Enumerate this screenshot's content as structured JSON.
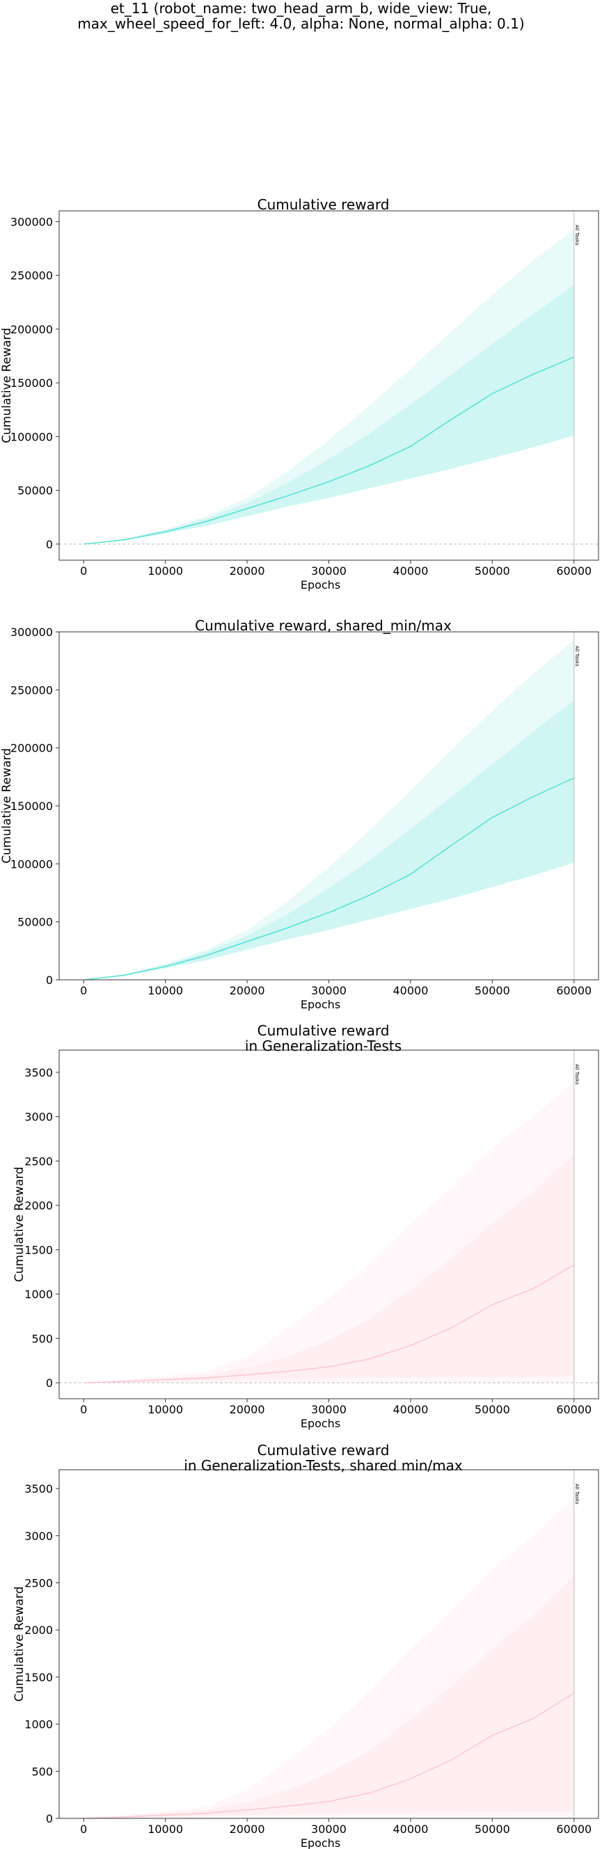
{
  "figure": {
    "suptitle_line1": "et_11 (robot_name: two_head_arm_b, wide_view: True,",
    "suptitle_line2": "max_wheel_speed_for_left: 4.0, alpha: None, normal_alpha: 0.1)"
  },
  "chart_data": [
    {
      "type": "area",
      "title_lines": [
        "Cumulative reward"
      ],
      "xlabel": "Epochs",
      "ylabel": "Cumulative Reward",
      "xlim": [
        -3000,
        63000
      ],
      "ylim": [
        -15000,
        310000
      ],
      "xticks": [
        0,
        10000,
        20000,
        30000,
        40000,
        50000,
        60000
      ],
      "yticks": [
        0,
        50000,
        100000,
        150000,
        200000,
        250000,
        300000
      ],
      "vline": {
        "x": 60000,
        "label": "All Tasks"
      },
      "hline_y": 0,
      "color": "#40e0d0",
      "x": [
        0,
        5000,
        10000,
        15000,
        20000,
        25000,
        30000,
        35000,
        40000,
        45000,
        50000,
        55000,
        60000
      ],
      "series": [
        {
          "role": "mean",
          "values": [
            0,
            4000,
            11500,
            21000,
            33000,
            45000,
            58000,
            73000,
            91000,
            116000,
            140000,
            158000,
            174000
          ]
        },
        {
          "role": "band_inner_upper",
          "values": [
            0,
            4500,
            13000,
            24000,
            38000,
            57000,
            79000,
            103000,
            130000,
            158000,
            186000,
            214000,
            241000
          ]
        },
        {
          "role": "band_inner_lower",
          "values": [
            0,
            3500,
            10000,
            17000,
            26000,
            35000,
            43000,
            52000,
            61000,
            70000,
            80000,
            90000,
            101000
          ]
        },
        {
          "role": "band_outer_upper",
          "values": [
            0,
            5000,
            14000,
            26000,
            43000,
            68000,
            97000,
            129000,
            163000,
            198000,
            232000,
            264000,
            293000
          ]
        },
        {
          "role": "band_outer_lower",
          "values": [
            0,
            3500,
            10000,
            17000,
            26000,
            35000,
            43000,
            52000,
            61000,
            70000,
            80000,
            90000,
            101000
          ]
        }
      ]
    },
    {
      "type": "area",
      "title_lines": [
        "Cumulative reward, shared_min/max"
      ],
      "xlabel": "Epochs",
      "ylabel": "Cumulative Reward",
      "xlim": [
        -3000,
        63000
      ],
      "ylim": [
        0,
        300000
      ],
      "xticks": [
        0,
        10000,
        20000,
        30000,
        40000,
        50000,
        60000
      ],
      "yticks": [
        0,
        50000,
        100000,
        150000,
        200000,
        250000,
        300000
      ],
      "vline": {
        "x": 60000,
        "label": "All Tasks"
      },
      "hline_y": 0,
      "color": "#40e0d0",
      "x": [
        0,
        5000,
        10000,
        15000,
        20000,
        25000,
        30000,
        35000,
        40000,
        45000,
        50000,
        55000,
        60000
      ],
      "series": [
        {
          "role": "mean",
          "values": [
            0,
            4000,
            11500,
            21000,
            33000,
            45000,
            58000,
            73000,
            91000,
            116000,
            140000,
            158000,
            174000
          ]
        },
        {
          "role": "band_inner_upper",
          "values": [
            0,
            4500,
            13000,
            24000,
            38000,
            57000,
            79000,
            103000,
            130000,
            158000,
            186000,
            214000,
            241000
          ]
        },
        {
          "role": "band_inner_lower",
          "values": [
            0,
            3500,
            10000,
            17000,
            26000,
            35000,
            43000,
            52000,
            61000,
            70000,
            80000,
            90000,
            101000
          ]
        },
        {
          "role": "band_outer_upper",
          "values": [
            0,
            5000,
            14000,
            26000,
            43000,
            68000,
            97000,
            129000,
            163000,
            198000,
            232000,
            264000,
            293000
          ]
        },
        {
          "role": "band_outer_lower",
          "values": [
            0,
            3500,
            10000,
            17000,
            26000,
            35000,
            43000,
            52000,
            61000,
            70000,
            80000,
            90000,
            101000
          ]
        }
      ]
    },
    {
      "type": "area",
      "title_lines": [
        "Cumulative reward",
        "in Generalization-Tests"
      ],
      "xlabel": "Epochs",
      "ylabel": "Cumulative Reward",
      "xlim": [
        -3000,
        63000
      ],
      "ylim": [
        -180,
        3750
      ],
      "xticks": [
        0,
        10000,
        20000,
        30000,
        40000,
        50000,
        60000
      ],
      "yticks": [
        0,
        500,
        1000,
        1500,
        2000,
        2500,
        3000,
        3500
      ],
      "vline": {
        "x": 60000,
        "label": "All Tasks"
      },
      "hline_y": 0,
      "color": "#ffc0cb",
      "x": [
        0,
        5000,
        10000,
        15000,
        20000,
        25000,
        30000,
        35000,
        40000,
        45000,
        50000,
        55000,
        60000
      ],
      "series": [
        {
          "role": "mean",
          "values": [
            0,
            15,
            35,
            55,
            90,
            130,
            180,
            270,
            420,
            620,
            880,
            1060,
            1330
          ]
        },
        {
          "role": "band_inner_upper",
          "values": [
            0,
            25,
            55,
            90,
            170,
            300,
            480,
            720,
            1050,
            1400,
            1800,
            2150,
            2580
          ]
        },
        {
          "role": "band_inner_lower",
          "values": [
            0,
            5,
            15,
            25,
            35,
            45,
            50,
            55,
            60,
            62,
            65,
            67,
            70
          ]
        },
        {
          "role": "band_outer_upper",
          "values": [
            0,
            35,
            75,
            130,
            300,
            620,
            950,
            1350,
            1800,
            2200,
            2650,
            3000,
            3400
          ]
        },
        {
          "role": "band_outer_lower",
          "values": [
            0,
            0,
            0,
            0,
            0,
            0,
            0,
            0,
            0,
            0,
            0,
            0,
            0
          ]
        }
      ]
    },
    {
      "type": "area",
      "title_lines": [
        "Cumulative reward",
        "in Generalization-Tests, shared min/max"
      ],
      "xlabel": "Epochs",
      "ylabel": "Cumulative Reward",
      "xlim": [
        -3000,
        63000
      ],
      "ylim": [
        0,
        3700
      ],
      "xticks": [
        0,
        10000,
        20000,
        30000,
        40000,
        50000,
        60000
      ],
      "yticks": [
        0,
        500,
        1000,
        1500,
        2000,
        2500,
        3000,
        3500
      ],
      "vline": {
        "x": 60000,
        "label": "All Tasks"
      },
      "hline_y": 0,
      "color": "#ffc0cb",
      "x": [
        0,
        5000,
        10000,
        15000,
        20000,
        25000,
        30000,
        35000,
        40000,
        45000,
        50000,
        55000,
        60000
      ],
      "series": [
        {
          "role": "mean",
          "values": [
            0,
            15,
            35,
            55,
            90,
            130,
            180,
            270,
            420,
            620,
            880,
            1060,
            1330
          ]
        },
        {
          "role": "band_inner_upper",
          "values": [
            0,
            25,
            55,
            90,
            170,
            300,
            480,
            720,
            1050,
            1400,
            1800,
            2150,
            2580
          ]
        },
        {
          "role": "band_inner_lower",
          "values": [
            0,
            5,
            15,
            25,
            35,
            45,
            50,
            55,
            60,
            62,
            65,
            67,
            70
          ]
        },
        {
          "role": "band_outer_upper",
          "values": [
            0,
            35,
            75,
            130,
            300,
            620,
            950,
            1350,
            1800,
            2200,
            2650,
            3000,
            3400
          ]
        },
        {
          "role": "band_outer_lower",
          "values": [
            0,
            0,
            0,
            0,
            0,
            0,
            0,
            0,
            0,
            0,
            0,
            0,
            0
          ]
        }
      ]
    }
  ]
}
